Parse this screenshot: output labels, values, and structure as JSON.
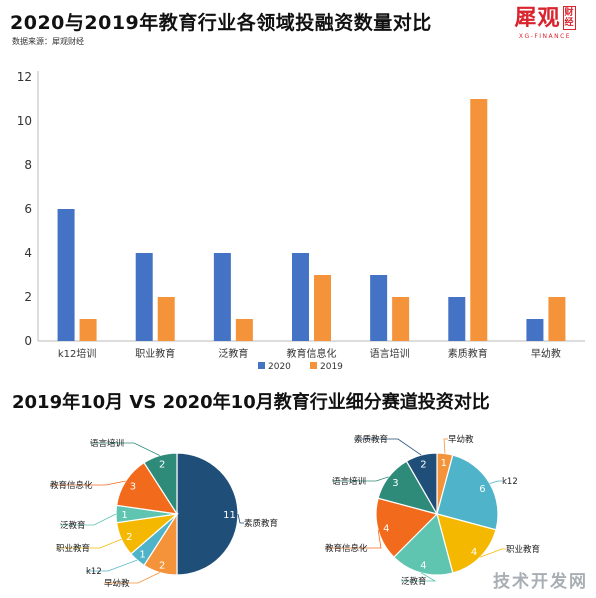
{
  "header": {
    "title": "2020与2019年教育行业各领域投融资数量对比",
    "source": "数据来源：犀观财经"
  },
  "logo": {
    "main": "犀观",
    "seal": "财经",
    "sub": "XG-FINANCE"
  },
  "section2": {
    "title": "2019年10月 VS 2020年10月教育行业细分赛道投资对比"
  },
  "watermark": "技术开发网",
  "chart_data": [
    {
      "type": "bar",
      "categories": [
        "k12培训",
        "职业教育",
        "泛教育",
        "教育信息化",
        "语言培训",
        "素质教育",
        "早幼教"
      ],
      "series": [
        {
          "name": "2020",
          "values": [
            6,
            4,
            4,
            4,
            3,
            2,
            1
          ],
          "color": "#4472c4"
        },
        {
          "name": "2019",
          "values": [
            1,
            2,
            1,
            3,
            2,
            11,
            2
          ],
          "color": "#f4933a"
        }
      ],
      "ylim": [
        0,
        12
      ],
      "yticks": [
        0,
        2,
        4,
        6,
        8,
        10,
        12
      ],
      "grid": false,
      "legend": "bottom-center"
    },
    {
      "type": "pie",
      "labels": [
        "素质教育",
        "早幼教",
        "k12",
        "职业教育",
        "泛教育",
        "教育信息化",
        "语言培训"
      ],
      "values": [
        11,
        2,
        1,
        2,
        1,
        3,
        2
      ],
      "colors": [
        "#1f4e79",
        "#f4933a",
        "#4fb3c9",
        "#f5b800",
        "#5fc4b0",
        "#f26b1d",
        "#2e8b7a"
      ]
    },
    {
      "type": "pie",
      "labels": [
        "早幼教",
        "k12",
        "职业教育",
        "泛教育",
        "教育信息化",
        "语言培训",
        "素质教育"
      ],
      "values": [
        1,
        6,
        4,
        4,
        4,
        3,
        2
      ],
      "colors": [
        "#f4933a",
        "#4fb3c9",
        "#f5b800",
        "#5fc4b0",
        "#f26b1d",
        "#2e8b7a",
        "#1f4e79"
      ]
    }
  ]
}
